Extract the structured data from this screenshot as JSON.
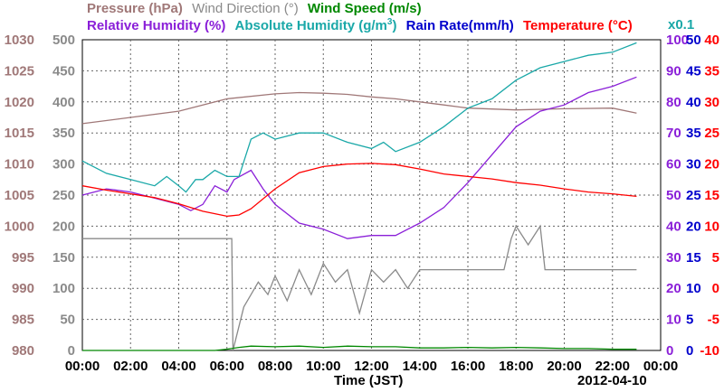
{
  "chart_data": {
    "type": "line",
    "date": "2012-04-10",
    "xlabel": "Time (JST)",
    "x_ticks": [
      "00:00",
      "02:00",
      "04:00",
      "06:00",
      "08:00",
      "10:00",
      "12:00",
      "14:00",
      "16:00",
      "18:00",
      "20:00",
      "22:00",
      "00:00"
    ],
    "x_range_hours": [
      0,
      24
    ],
    "grid": true,
    "legend_row1": [
      {
        "name": "Pressure (hPa)",
        "color": "#a07878"
      },
      {
        "name": "Wind Direction (°)",
        "color": "#8a8a8a"
      },
      {
        "name": "Wind Speed (m/s)",
        "color": "#008800"
      }
    ],
    "legend_row2": [
      {
        "name": "Relative Humidity (%)",
        "color": "#8a1fd8"
      },
      {
        "name": "Absolute Humidity (g/m",
        "color": "#1aa8a8",
        "sup": "3",
        "close": ")"
      },
      {
        "name": "Rain Rate(mm/h)",
        "color": "#0000cc"
      },
      {
        "name": "Temperature (°C)",
        "color": "#ff0000"
      }
    ],
    "abs_humidity_scale_note": "x0.1",
    "axes": {
      "pressure": {
        "color": "#a07878",
        "min": 980,
        "max": 1030,
        "ticks": [
          "1030",
          "1025",
          "1020",
          "1015",
          "1010",
          "1005",
          "1000",
          "995",
          "990",
          "985",
          "980"
        ]
      },
      "direction": {
        "color": "#8a8a8a",
        "min": 0,
        "max": 500,
        "ticks": [
          "500",
          "450",
          "400",
          "350",
          "300",
          "250",
          "200",
          "150",
          "100",
          "50",
          "0"
        ]
      },
      "humidity": {
        "color": "#8a1fd8",
        "min": 0,
        "max": 100,
        "ticks": [
          "100",
          "90",
          "80",
          "70",
          "60",
          "50",
          "40",
          "30",
          "20",
          "10",
          "0"
        ]
      },
      "rain": {
        "color": "#0000cc",
        "min": 0,
        "max": 50,
        "ticks": [
          "50",
          "45",
          "40",
          "35",
          "30",
          "25",
          "20",
          "15",
          "10",
          "5",
          "0"
        ]
      },
      "temperature": {
        "color": "#ff0000",
        "min": -10,
        "max": 40,
        "ticks": [
          "40",
          "35",
          "30",
          "25",
          "20",
          "15",
          "10",
          "5",
          "0",
          "-5",
          "-10"
        ]
      }
    },
    "series": [
      {
        "name": "Pressure (hPa)",
        "color": "#a07878",
        "axis": "pressure",
        "x": [
          0,
          2,
          4,
          5,
          6,
          8,
          9,
          10,
          11,
          12,
          13,
          14,
          15,
          16,
          18,
          20,
          22,
          23
        ],
        "values": [
          1016.5,
          1017.5,
          1018.5,
          1019.5,
          1020.5,
          1021.3,
          1021.5,
          1021.4,
          1021.2,
          1020.8,
          1020.5,
          1020.0,
          1019.5,
          1019.0,
          1018.7,
          1018.9,
          1019.0,
          1018.2
        ]
      },
      {
        "name": "Relative Humidity (%)",
        "color": "#8a1fd8",
        "axis": "humidity",
        "x": [
          0,
          1,
          2,
          3,
          4,
          4.5,
          5,
          5.5,
          6,
          6.3,
          7,
          7.5,
          8,
          9,
          10,
          11,
          12,
          13,
          14,
          15,
          16,
          17,
          18,
          19,
          20,
          21,
          22,
          23
        ],
        "values": [
          50,
          52,
          51,
          49,
          47,
          45,
          47,
          53,
          51,
          55,
          58,
          52,
          47,
          41,
          39,
          36,
          37,
          37,
          41,
          46,
          54,
          63,
          72,
          77,
          79,
          83,
          85,
          88
        ]
      },
      {
        "name": "Absolute Humidity x0.1 (g/m3)",
        "color": "#1aa8a8",
        "axis": "humidity",
        "x": [
          0,
          1,
          2,
          3,
          3.5,
          4,
          4.3,
          4.7,
          5,
          5.5,
          6,
          6.5,
          7,
          7.5,
          8,
          9,
          10,
          11,
          12,
          12.5,
          13,
          14,
          15,
          16,
          17,
          18,
          19,
          20,
          21,
          22,
          23
        ],
        "values": [
          61,
          57,
          55,
          53,
          56,
          53,
          51,
          55,
          55,
          58,
          56,
          56,
          68,
          70,
          68,
          70,
          70,
          67,
          65,
          67,
          64,
          67,
          72,
          78,
          81,
          87,
          91,
          93,
          95,
          96,
          99
        ]
      },
      {
        "name": "Temperature (°C)",
        "color": "#ff0000",
        "axis": "temperature",
        "x": [
          0,
          1,
          2,
          3,
          4,
          5,
          6,
          6.5,
          7,
          8,
          9,
          10,
          11,
          12,
          13,
          14,
          15,
          16,
          17,
          18,
          19,
          20,
          21,
          22,
          23
        ],
        "values": [
          16.5,
          15.8,
          15.2,
          14.6,
          13.6,
          12.4,
          11.6,
          11.8,
          12.8,
          16.0,
          18.6,
          19.6,
          20.0,
          20.1,
          19.9,
          19.2,
          18.4,
          18.0,
          17.6,
          17.0,
          16.6,
          16.0,
          15.5,
          15.2,
          14.8
        ]
      },
      {
        "name": "Wind Direction (°)",
        "color": "#8a8a8a",
        "axis": "direction",
        "x": [
          0,
          6.2,
          6.25,
          6.7,
          7,
          7.3,
          7.7,
          8,
          8.5,
          9,
          9.5,
          10,
          10.5,
          11,
          11.5,
          12,
          12.5,
          13,
          13.5,
          14,
          15,
          16,
          17,
          17.5,
          17.8,
          18,
          18.5,
          19,
          19.2,
          19.5,
          20,
          21,
          22,
          23
        ],
        "values": [
          180,
          180,
          0,
          70,
          90,
          110,
          90,
          120,
          80,
          130,
          90,
          140,
          110,
          130,
          60,
          130,
          110,
          130,
          100,
          130,
          130,
          130,
          130,
          130,
          180,
          200,
          170,
          200,
          130,
          130,
          130,
          130,
          130,
          130
        ]
      },
      {
        "name": "Wind Speed (m/s)",
        "color": "#008800",
        "axis": "direction",
        "x": [
          0,
          5.5,
          6,
          6.5,
          7,
          8,
          9,
          10,
          11,
          12,
          13,
          14,
          15,
          16,
          17,
          18,
          19,
          20,
          21,
          22,
          23
        ],
        "values": [
          0,
          0,
          2,
          5,
          7,
          6,
          7,
          5,
          7,
          6,
          6,
          4,
          4,
          5,
          4,
          5,
          4,
          3,
          3,
          2,
          2
        ]
      }
    ]
  }
}
